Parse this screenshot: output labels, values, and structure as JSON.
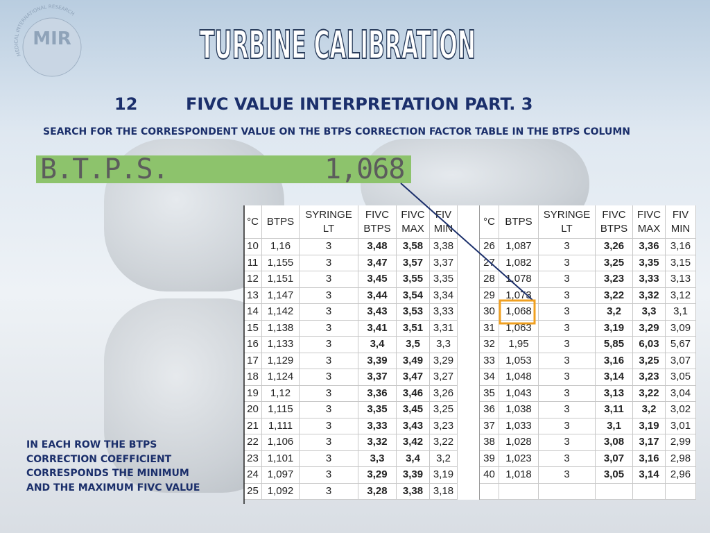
{
  "logo": {
    "text": "MIR",
    "subtext": "MEDICAL INTERNATIONAL RESEARCH"
  },
  "title": "TURBINE CALIBRATION",
  "heading": {
    "number": "12",
    "text": "FIVC VALUE INTERPRETATION PART. 3"
  },
  "instruction": "SEARCH FOR THE CORRESPONDENT VALUE ON THE BTPS CORRECTION FACTOR TABLE IN THE BTPS COLUMN",
  "display": {
    "label": "B.T.P.S.",
    "value": "1,068"
  },
  "table": {
    "header": [
      "°C",
      "BTPS",
      "SYRINGE LT",
      "FIVC BTPS",
      "FIVC MAX",
      "FIV MIN"
    ],
    "left_rows": [
      [
        "10",
        "1,16",
        "3",
        "3,48",
        "3,58",
        "3,38"
      ],
      [
        "11",
        "1,155",
        "3",
        "3,47",
        "3,57",
        "3,37"
      ],
      [
        "12",
        "1,151",
        "3",
        "3,45",
        "3,55",
        "3,35"
      ],
      [
        "13",
        "1,147",
        "3",
        "3,44",
        "3,54",
        "3,34"
      ],
      [
        "14",
        "1,142",
        "3",
        "3,43",
        "3,53",
        "3,33"
      ],
      [
        "15",
        "1,138",
        "3",
        "3,41",
        "3,51",
        "3,31"
      ],
      [
        "16",
        "1,133",
        "3",
        "3,4",
        "3,5",
        "3,3"
      ],
      [
        "17",
        "1,129",
        "3",
        "3,39",
        "3,49",
        "3,29"
      ],
      [
        "18",
        "1,124",
        "3",
        "3,37",
        "3,47",
        "3,27"
      ],
      [
        "19",
        "1,12",
        "3",
        "3,36",
        "3,46",
        "3,26"
      ],
      [
        "20",
        "1,115",
        "3",
        "3,35",
        "3,45",
        "3,25"
      ],
      [
        "21",
        "1,111",
        "3",
        "3,33",
        "3,43",
        "3,23"
      ],
      [
        "22",
        "1,106",
        "3",
        "3,32",
        "3,42",
        "3,22"
      ],
      [
        "23",
        "1,101",
        "3",
        "3,3",
        "3,4",
        "3,2"
      ],
      [
        "24",
        "1,097",
        "3",
        "3,29",
        "3,39",
        "3,19"
      ],
      [
        "25",
        "1,092",
        "3",
        "3,28",
        "3,38",
        "3,18"
      ]
    ],
    "right_rows": [
      [
        "26",
        "1,087",
        "3",
        "3,26",
        "3,36",
        "3,16"
      ],
      [
        "27",
        "1,082",
        "3",
        "3,25",
        "3,35",
        "3,15"
      ],
      [
        "28",
        "1,078",
        "3",
        "3,23",
        "3,33",
        "3,13"
      ],
      [
        "29",
        "1,073",
        "3",
        "3,22",
        "3,32",
        "3,12"
      ],
      [
        "30",
        "1,068",
        "3",
        "3,2",
        "3,3",
        "3,1"
      ],
      [
        "31",
        "1,063",
        "3",
        "3,19",
        "3,29",
        "3,09"
      ],
      [
        "32",
        "1,95",
        "3",
        "5,85",
        "6,03",
        "5,67"
      ],
      [
        "33",
        "1,053",
        "3",
        "3,16",
        "3,25",
        "3,07"
      ],
      [
        "34",
        "1,048",
        "3",
        "3,14",
        "3,23",
        "3,05"
      ],
      [
        "35",
        "1,043",
        "3",
        "3,13",
        "3,22",
        "3,04"
      ],
      [
        "36",
        "1,038",
        "3",
        "3,11",
        "3,2",
        "3,02"
      ],
      [
        "37",
        "1,033",
        "3",
        "3,1",
        "3,19",
        "3,01"
      ],
      [
        "38",
        "1,028",
        "3",
        "3,08",
        "3,17",
        "2,99"
      ],
      [
        "39",
        "1,023",
        "3",
        "3,07",
        "3,16",
        "2,98"
      ],
      [
        "40",
        "1,018",
        "3",
        "3,05",
        "3,14",
        "2,96"
      ]
    ]
  },
  "note": {
    "lines": [
      "IN EACH ROW THE BTPS",
      "CORRECTION COEFFICIENT",
      "CORRESPONDS THE MINIMUM",
      "AND THE MAXIMUM FIVC VALUE"
    ]
  }
}
